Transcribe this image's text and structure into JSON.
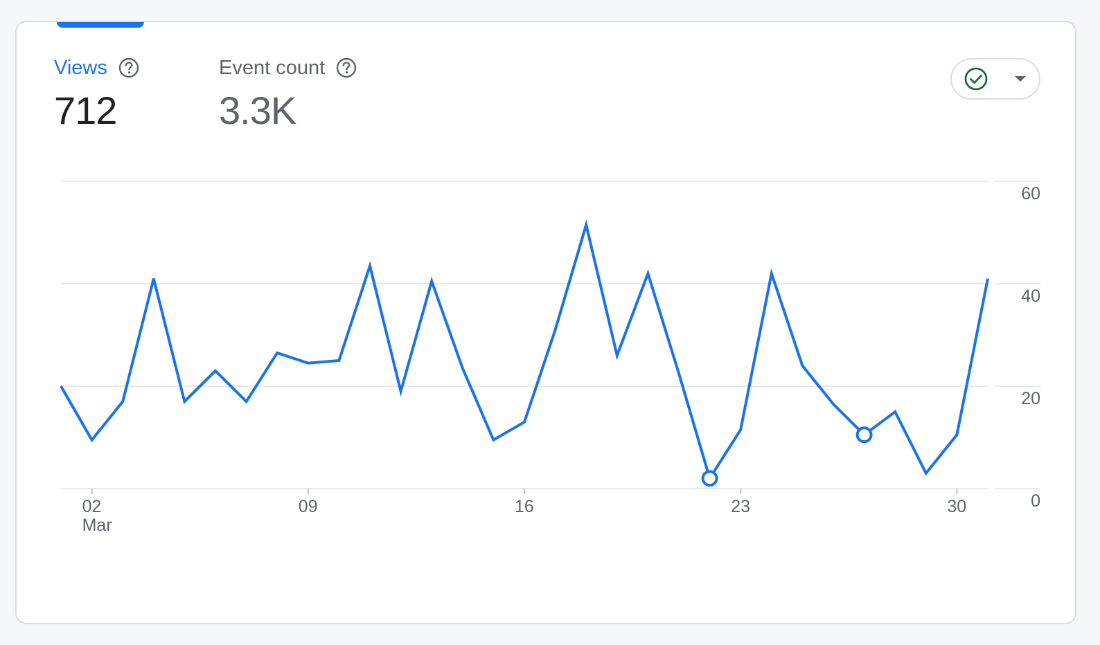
{
  "metrics": {
    "views": {
      "label": "Views",
      "value": "712"
    },
    "event_count": {
      "label": "Event count",
      "value": "3.3K"
    }
  },
  "icons": {
    "help": "help-circle-icon",
    "status": "check-circle-icon",
    "dropdown": "caret-down-icon"
  },
  "colors": {
    "accent": "#1a73e8",
    "status_ok": "#1e6b34",
    "gridline": "#e8eaed",
    "tick_text": "#5f6368"
  },
  "chart_data": {
    "type": "line",
    "title": "",
    "xlabel": "",
    "ylabel": "",
    "x": [
      "2024-03-01",
      "2024-03-02",
      "2024-03-03",
      "2024-03-04",
      "2024-03-05",
      "2024-03-06",
      "2024-03-07",
      "2024-03-08",
      "2024-03-09",
      "2024-03-10",
      "2024-03-11",
      "2024-03-12",
      "2024-03-13",
      "2024-03-14",
      "2024-03-15",
      "2024-03-16",
      "2024-03-17",
      "2024-03-18",
      "2024-03-19",
      "2024-03-20",
      "2024-03-21",
      "2024-03-22",
      "2024-03-23",
      "2024-03-24",
      "2024-03-25",
      "2024-03-26",
      "2024-03-27",
      "2024-03-28",
      "2024-03-29",
      "2024-03-30",
      "2024-03-31"
    ],
    "series": [
      {
        "name": "Views",
        "values": [
          20,
          9.5,
          17,
          41,
          17,
          23,
          17,
          26.5,
          24.5,
          25,
          43.5,
          19,
          40.5,
          23.5,
          9.5,
          13,
          31,
          51.5,
          26,
          42,
          22.5,
          2,
          11.5,
          42,
          24,
          16.5,
          10.5,
          15,
          3,
          10.5,
          41
        ],
        "markers": [
          21,
          26
        ]
      }
    ],
    "y_ticks": [
      "0",
      "20",
      "40",
      "60"
    ],
    "y_tick_values": [
      0,
      20,
      40,
      60
    ],
    "ylim": [
      0,
      60
    ],
    "y_axis_position": "right",
    "x_ticks": [
      {
        "label": "02",
        "sublabel": "Mar",
        "index": 1
      },
      {
        "label": "09",
        "sublabel": "",
        "index": 8
      },
      {
        "label": "16",
        "sublabel": "",
        "index": 15
      },
      {
        "label": "23",
        "sublabel": "",
        "index": 22
      },
      {
        "label": "30",
        "sublabel": "",
        "index": 29
      }
    ],
    "grid": true,
    "legend": "none"
  }
}
